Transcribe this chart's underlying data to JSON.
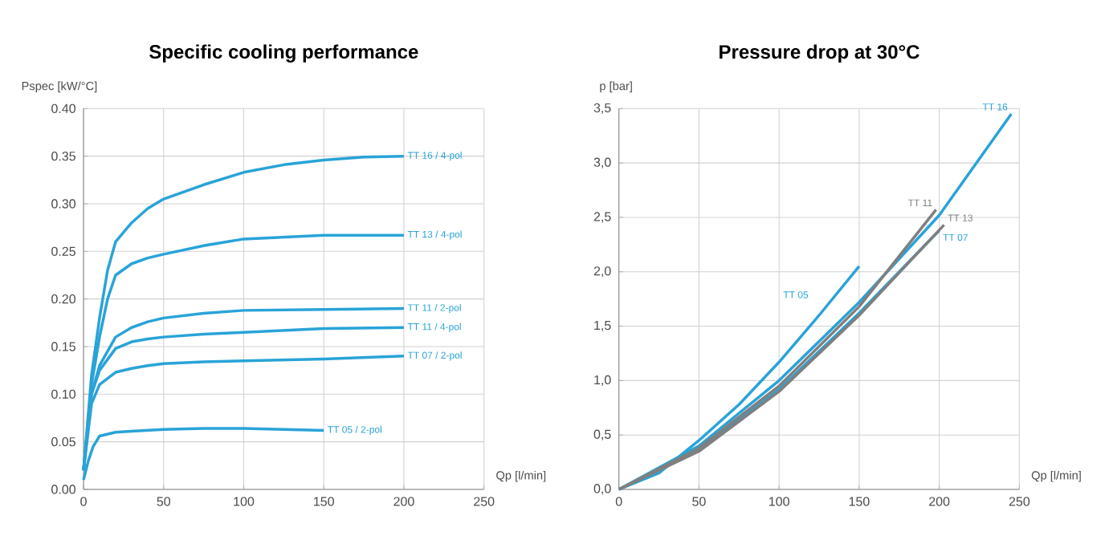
{
  "chart_data": [
    {
      "type": "line",
      "title": "Specific cooling performance",
      "xlabel": "Qp [l/min]",
      "ylabel": "Pspec [kW/°C]",
      "grid": true,
      "xlim": [
        0,
        250
      ],
      "ylim": [
        0,
        0.4
      ],
      "xticks": [
        0,
        50,
        100,
        150,
        200,
        250
      ],
      "yticks": [
        {
          "value": 0,
          "label": "0.00"
        },
        {
          "value": 0.05,
          "label": "0.05"
        },
        {
          "value": 0.1,
          "label": "0.10"
        },
        {
          "value": 0.15,
          "label": "0.15"
        },
        {
          "value": 0.2,
          "label": "0.20"
        },
        {
          "value": 0.25,
          "label": "0.25"
        },
        {
          "value": 0.3,
          "label": "0.30"
        },
        {
          "value": 0.35,
          "label": "0.35"
        },
        {
          "value": 0.4,
          "label": "0.40"
        }
      ],
      "series": [
        {
          "name": "TT 16 / 4-pol",
          "color": "#29a3d8",
          "x": [
            0,
            5,
            10,
            15,
            20,
            30,
            40,
            50,
            75,
            100,
            125,
            150,
            175,
            200
          ],
          "values": [
            0.02,
            0.12,
            0.18,
            0.23,
            0.26,
            0.28,
            0.295,
            0.305,
            0.32,
            0.333,
            0.341,
            0.346,
            0.349,
            0.35
          ]
        },
        {
          "name": "TT 13 / 4-pol",
          "color": "#29a3d8",
          "x": [
            0,
            5,
            10,
            15,
            20,
            30,
            40,
            50,
            75,
            100,
            150,
            200
          ],
          "values": [
            0.02,
            0.11,
            0.16,
            0.2,
            0.225,
            0.237,
            0.243,
            0.247,
            0.256,
            0.263,
            0.267,
            0.267
          ]
        },
        {
          "name": "TT 11 / 2-pol",
          "color": "#29a3d8",
          "x": [
            0,
            5,
            10,
            20,
            30,
            40,
            50,
            75,
            100,
            150,
            200
          ],
          "values": [
            0.02,
            0.1,
            0.13,
            0.16,
            0.17,
            0.176,
            0.18,
            0.185,
            0.188,
            0.189,
            0.19
          ]
        },
        {
          "name": "TT 11 / 4-pol",
          "color": "#29a3d8",
          "x": [
            0,
            5,
            10,
            20,
            30,
            40,
            50,
            75,
            100,
            150,
            200
          ],
          "values": [
            0.02,
            0.1,
            0.125,
            0.148,
            0.155,
            0.158,
            0.16,
            0.163,
            0.165,
            0.169,
            0.17
          ]
        },
        {
          "name": "TT 07 / 2-pol",
          "color": "#29a3d8",
          "x": [
            0,
            5,
            10,
            20,
            30,
            40,
            50,
            75,
            100,
            150,
            200
          ],
          "values": [
            0.02,
            0.09,
            0.11,
            0.123,
            0.127,
            0.13,
            0.132,
            0.134,
            0.135,
            0.137,
            0.14
          ]
        },
        {
          "name": "TT 05 / 2-pol",
          "color": "#29a3d8",
          "x": [
            0,
            3,
            6,
            10,
            20,
            30,
            50,
            75,
            100,
            125,
            150
          ],
          "values": [
            0.01,
            0.03,
            0.045,
            0.056,
            0.06,
            0.061,
            0.063,
            0.064,
            0.064,
            0.063,
            0.062
          ]
        }
      ]
    },
    {
      "type": "line",
      "title": "Pressure drop at 30°C",
      "xlabel": "Qp [l/min]",
      "ylabel": "p [bar]",
      "grid": true,
      "xlim": [
        0,
        250
      ],
      "ylim": [
        0,
        3.5
      ],
      "xticks": [
        0,
        50,
        100,
        150,
        200,
        250
      ],
      "yticks": [
        {
          "value": 0,
          "label": "0,0"
        },
        {
          "value": 0.5,
          "label": "0,5"
        },
        {
          "value": 1,
          "label": "1,0"
        },
        {
          "value": 1.5,
          "label": "1,5"
        },
        {
          "value": 2,
          "label": "2,0"
        },
        {
          "value": 2.5,
          "label": "2,5"
        },
        {
          "value": 3,
          "label": "3,0"
        },
        {
          "value": 3.5,
          "label": "3,5"
        }
      ],
      "series": [
        {
          "name": "TT 16",
          "color": "#29a3d8",
          "x": [
            0,
            50,
            100,
            150,
            200,
            245
          ],
          "values": [
            0,
            0.4,
            1.0,
            1.72,
            2.52,
            3.45
          ]
        },
        {
          "name": "TT 05",
          "color": "#29a3d8",
          "x": [
            0,
            25,
            50,
            75,
            100,
            125,
            150
          ],
          "values": [
            0,
            0.15,
            0.45,
            0.78,
            1.17,
            1.6,
            2.05
          ]
        },
        {
          "name": "TT 07",
          "color": "#29a3d8",
          "x": [
            0,
            50,
            100,
            150,
            200
          ],
          "values": [
            0,
            0.36,
            0.92,
            1.62,
            2.38
          ]
        },
        {
          "name": "TT 11",
          "color": "#7f7f7f",
          "x": [
            0,
            50,
            100,
            150,
            198
          ],
          "values": [
            0,
            0.38,
            0.95,
            1.68,
            2.57
          ]
        },
        {
          "name": "TT 13",
          "color": "#7f7f7f",
          "x": [
            0,
            50,
            100,
            150,
            203
          ],
          "values": [
            0,
            0.35,
            0.9,
            1.6,
            2.43
          ]
        }
      ]
    }
  ]
}
